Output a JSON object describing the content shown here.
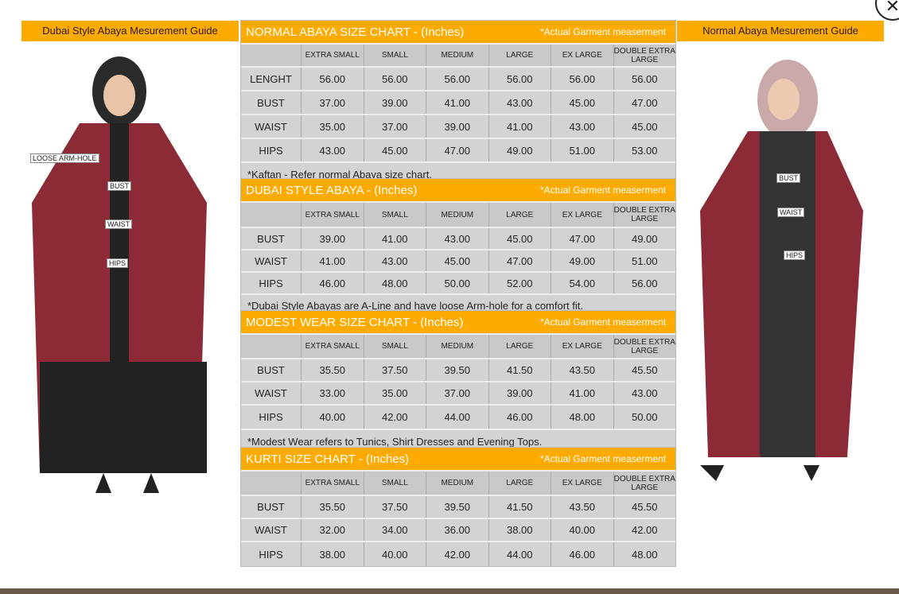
{
  "close_icon": "close-icon",
  "left_guide": {
    "title": "Dubai Style Abaya Mesurement Guide",
    "labels": [
      "LOOSE ARM-HOLE",
      "BUST",
      "WAIST",
      "HIPS"
    ]
  },
  "right_guide": {
    "title": "Normal Abaya Mesurement Guide",
    "labels": [
      "BUST",
      "WAIST",
      "HIPS"
    ]
  },
  "sizes": [
    "EXTRA SMALL",
    "SMALL",
    "MEDIUM",
    "LARGE",
    "EX LARGE",
    "DOUBLE EXTRA LARGE"
  ],
  "tables": [
    {
      "title": "NORMAL ABAYA SIZE CHART - (Inches)",
      "note": "*Actual Garment measerment",
      "rows": [
        [
          "LENGHT",
          "56.00",
          "56.00",
          "56.00",
          "56.00",
          "56.00",
          "56.00"
        ],
        [
          "BUST",
          "37.00",
          "39.00",
          "41.00",
          "43.00",
          "45.00",
          "47.00"
        ],
        [
          "WAIST",
          "35.00",
          "37.00",
          "39.00",
          "41.00",
          "43.00",
          "45.00"
        ],
        [
          "HIPS",
          "43.00",
          "45.00",
          "47.00",
          "49.00",
          "51.00",
          "53.00"
        ]
      ],
      "footer": "*Kaftan - Refer normal Abaya size chart."
    },
    {
      "title": "DUBAI STYLE ABAYA - (Inches)",
      "note": "*Actual Garment measerment",
      "rows": [
        [
          "BUST",
          "39.00",
          "41.00",
          "43.00",
          "45.00",
          "47.00",
          "49.00"
        ],
        [
          "WAIST",
          "41.00",
          "43.00",
          "45.00",
          "47.00",
          "49.00",
          "51.00"
        ],
        [
          "HIPS",
          "46.00",
          "48.00",
          "50.00",
          "52.00",
          "54.00",
          "56.00"
        ]
      ],
      "footer": "*Dubai Style Abayas are A-Line and have loose Arm-hole for a comfort fit."
    },
    {
      "title": "MODEST WEAR SIZE CHART - (Inches)",
      "note": "*Actual Garment measerment",
      "rows": [
        [
          "BUST",
          "35.50",
          "37.50",
          "39.50",
          "41.50",
          "43.50",
          "45.50"
        ],
        [
          "WAIST",
          "33.00",
          "35.00",
          "37.00",
          "39.00",
          "41.00",
          "43.00"
        ],
        [
          "HIPS",
          "40.00",
          "42.00",
          "44.00",
          "46.00",
          "48.00",
          "50.00"
        ]
      ],
      "footer": "*Modest Wear refers to Tunics, Shirt Dresses and Evening Tops."
    },
    {
      "title": "KURTI SIZE CHART - (Inches)",
      "note": "*Actual Garment measerment",
      "rows": [
        [
          "BUST",
          "35.50",
          "37.50",
          "39.50",
          "41.50",
          "43.50",
          "45.50"
        ],
        [
          "WAIST",
          "32.00",
          "34.00",
          "36.00",
          "38.00",
          "40.00",
          "42.00"
        ],
        [
          "HIPS",
          "38.00",
          "40.00",
          "42.00",
          "44.00",
          "46.00",
          "48.00"
        ]
      ],
      "footer": ""
    }
  ]
}
